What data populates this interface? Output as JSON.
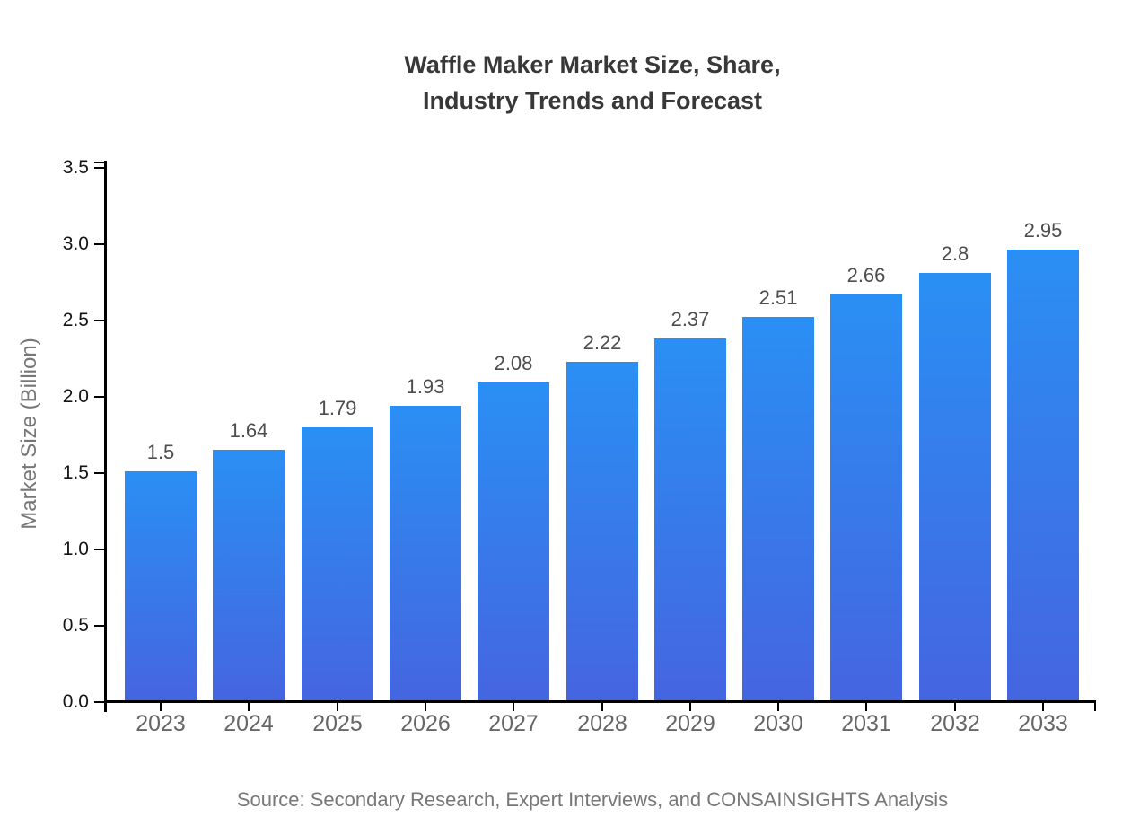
{
  "header": {
    "title_line1": "Waffle Maker Market Size, Share,",
    "title_line2": "Industry Trends and Forecast"
  },
  "footer": {
    "source": "Source: Secondary Research, Expert Interviews, and CONSAINSIGHTS Analysis"
  },
  "chart_data": {
    "type": "bar",
    "title": "Waffle Maker Market Size, Share, Industry Trends and Forecast",
    "categories": [
      "2023",
      "2024",
      "2025",
      "2026",
      "2027",
      "2028",
      "2029",
      "2030",
      "2031",
      "2032",
      "2033"
    ],
    "values": [
      1.5,
      1.64,
      1.79,
      1.93,
      2.08,
      2.22,
      2.37,
      2.51,
      2.66,
      2.8,
      2.95
    ],
    "value_labels": [
      "1.5",
      "1.64",
      "1.79",
      "1.93",
      "2.08",
      "2.22",
      "2.37",
      "2.51",
      "2.66",
      "2.8",
      "2.95"
    ],
    "xlabel": "",
    "ylabel": "Market Size (Billion)",
    "ylim": [
      0,
      3.5
    ],
    "ytick_step": 0.5,
    "yticks": [
      "0.0",
      "0.5",
      "1.0",
      "1.5",
      "2.0",
      "2.5",
      "3.0",
      "3.5"
    ],
    "grid": false,
    "legend": "none",
    "colors": {
      "bar_top": "#2a8ff4",
      "bar_bottom": "#4565e0",
      "axis": "#000000",
      "title": "#383838",
      "ytick_label": "#141414",
      "xtick_label": "#666666",
      "value_label": "#4d4d4d",
      "muted_label": "#777777"
    }
  }
}
